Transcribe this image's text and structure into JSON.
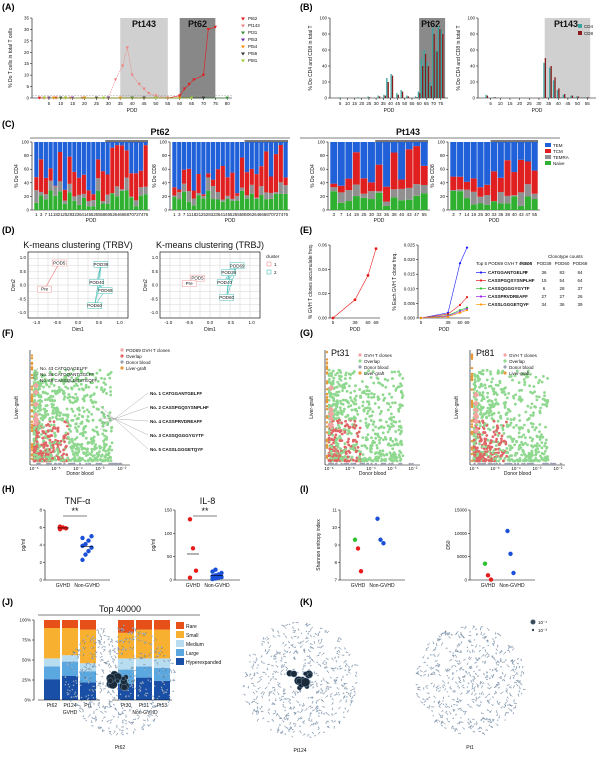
{
  "panels": {
    "A": {
      "label": "(A)"
    },
    "B": {
      "label": "(B)"
    },
    "C": {
      "label": "(C)"
    },
    "D": {
      "label": "(D)"
    },
    "E": {
      "label": "(E)"
    },
    "F": {
      "label": "(F)"
    },
    "G": {
      "label": "(G)"
    },
    "H": {
      "label": "(H)"
    },
    "I": {
      "label": "(I)"
    },
    "J": {
      "label": "(J)"
    },
    "K": {
      "label": "(K)"
    }
  },
  "chart_data": [
    {
      "id": "A",
      "type": "line",
      "xlabel": "POD",
      "ylabel": "% Do T cells in total T cells",
      "xticks": [
        "5",
        "10",
        "15",
        "20",
        "25",
        "30",
        "35",
        "40",
        "45",
        "50",
        "55",
        "60",
        "65",
        "70",
        "75",
        "80"
      ],
      "yticks": [
        "0",
        "5",
        "10",
        "15",
        "20",
        "25",
        "30",
        "35"
      ],
      "ylim": [
        0,
        35
      ],
      "shaded": [
        {
          "label": "Pt143",
          "range": [
            35,
            55
          ]
        },
        {
          "label": "Pt62",
          "range": [
            60,
            75
          ]
        }
      ],
      "legend": [
        "Pt62",
        "Pt143",
        "Pt31",
        "Pt53",
        "Pt54",
        "Pt56",
        "Pt81"
      ],
      "colors": {
        "Pt62": "#e8191a",
        "Pt143": "#f08080",
        "Pt31": "#2e8b2e",
        "Pt53": "#6a2aa8",
        "Pt54": "#ff8c00",
        "Pt56": "#333333",
        "Pt81": "#9acd32"
      },
      "series": [
        {
          "name": "Pt62",
          "x": [
            1,
            3,
            5,
            8,
            12,
            20,
            30,
            40,
            45,
            50,
            55,
            60,
            62,
            64,
            66,
            70,
            72,
            75
          ],
          "y": [
            0,
            0,
            0,
            0,
            0,
            0,
            0,
            0,
            0,
            0,
            0,
            1,
            4,
            6,
            8,
            10,
            30,
            31
          ]
        },
        {
          "name": "Pt143",
          "x": [
            3,
            7,
            14,
            19,
            25,
            30,
            33,
            36,
            38,
            40,
            43,
            45,
            47,
            50,
            55
          ],
          "y": [
            0,
            0,
            0,
            0,
            0,
            0,
            8,
            14,
            22,
            10,
            6,
            4,
            2,
            1,
            0
          ]
        },
        {
          "name": "Pt31",
          "x": [
            5,
            10,
            20,
            30,
            40,
            60,
            80
          ],
          "y": [
            0,
            0,
            0,
            0,
            0,
            0,
            0
          ]
        },
        {
          "name": "Pt53",
          "x": [
            5,
            15,
            30,
            50
          ],
          "y": [
            0,
            0,
            0,
            0
          ]
        },
        {
          "name": "Pt54",
          "x": [
            7,
            20,
            35,
            60
          ],
          "y": [
            0,
            0,
            0,
            0
          ]
        },
        {
          "name": "Pt56",
          "x": [
            10,
            25,
            45,
            70
          ],
          "y": [
            0,
            0,
            0,
            0
          ]
        },
        {
          "name": "Pt81",
          "x": [
            3,
            12,
            28,
            50,
            65
          ],
          "y": [
            0,
            0,
            0,
            0,
            0
          ]
        }
      ]
    },
    {
      "id": "B1",
      "type": "bar",
      "title": "Pt62",
      "ylabel": "% Do CD4 and CD8 in total T",
      "xlabel": "POD",
      "yticks": [
        "0",
        "20",
        "40",
        "60",
        "80",
        "100"
      ],
      "ylim": [
        0,
        100
      ],
      "xticks": [
        "5",
        "10",
        "15",
        "20",
        "25",
        "30",
        "35",
        "40",
        "45",
        "50",
        "55",
        "60",
        "65",
        "70",
        "75"
      ],
      "shaded": [
        60,
        76
      ],
      "x": [
        1,
        3,
        5,
        7,
        11,
        14,
        18,
        21,
        25,
        28,
        32,
        36,
        38,
        41,
        45,
        48,
        52,
        55,
        58,
        60,
        62,
        64,
        66,
        68,
        70,
        72,
        74,
        76
      ],
      "series": [
        {
          "name": "CD4",
          "values": [
            0,
            0,
            1,
            0,
            0,
            0,
            1,
            0,
            2,
            0,
            3,
            4,
            25,
            30,
            6,
            10,
            3,
            0,
            2,
            8,
            50,
            60,
            45,
            20,
            88,
            60,
            90,
            85
          ]
        },
        {
          "name": "CD8",
          "values": [
            0,
            0,
            0,
            0,
            0,
            0,
            0,
            0,
            1,
            0,
            2,
            3,
            20,
            28,
            4,
            8,
            2,
            0,
            1,
            6,
            40,
            55,
            40,
            15,
            80,
            58,
            86,
            80
          ]
        }
      ]
    },
    {
      "id": "B2",
      "type": "bar",
      "title": "Pt143",
      "ylabel": "% Do CD4 and CD8 in total T",
      "xlabel": "POD",
      "yticks": [
        "0",
        "20",
        "40",
        "60",
        "80",
        "100"
      ],
      "ylim": [
        0,
        100
      ],
      "xticks": [
        "5",
        "10",
        "15",
        "20",
        "25",
        "30",
        "35",
        "40",
        "45",
        "50",
        "55"
      ],
      "shaded": [
        33,
        55
      ],
      "legend": [
        "CD4",
        "CD8"
      ],
      "x": [
        3,
        7,
        14,
        19,
        25,
        30,
        33,
        36,
        38,
        40,
        43,
        47,
        50,
        55
      ],
      "series": [
        {
          "name": "CD4",
          "values": [
            4,
            1,
            0,
            0,
            0,
            0,
            44,
            38,
            22,
            10,
            4,
            3,
            2,
            1
          ]
        },
        {
          "name": "CD8",
          "values": [
            3,
            1,
            0,
            0,
            0,
            0,
            50,
            40,
            26,
            12,
            5,
            3,
            2,
            1
          ]
        }
      ]
    },
    {
      "id": "C",
      "type": "stacked-bar",
      "titles": [
        "Pt62",
        "Pt143"
      ],
      "ylabels": [
        "% Do CD4",
        "% Do CD8",
        "% Do CD4",
        "% Do CD8"
      ],
      "yticks": [
        "0",
        "20",
        "40",
        "60",
        "80",
        "100"
      ],
      "legend": [
        "TEM",
        "TCM",
        "TEMRA",
        "Naive"
      ],
      "colors": {
        "TEM": "#2060d8",
        "TCM": "#e02020",
        "TEMRA": "#909090",
        "Naive": "#30b030"
      },
      "xticks_pt62": [
        "1",
        "3",
        "7",
        "11",
        "18",
        "21",
        "25",
        "28",
        "32",
        "36",
        "41",
        "45",
        "52",
        "55",
        "58",
        "60",
        "62",
        "64",
        "66",
        "68",
        "70",
        "72",
        "74",
        "76"
      ],
      "xticks_pt143": [
        "3",
        "7",
        "14",
        "19",
        "25",
        "30",
        "33",
        "36",
        "38",
        "40",
        "43",
        "47",
        "55"
      ]
    },
    {
      "id": "D",
      "type": "scatter",
      "titles": [
        "K-means clustering (TRBV)",
        "K-means clustering (TRBJ)"
      ],
      "xlabel": "Dim1",
      "ylabel": "Dim2",
      "legend_title": "cluster",
      "legend": [
        "1",
        "2"
      ],
      "xticks": [
        "-1.0",
        "-0.5",
        "0.0",
        "0.5",
        "1.0"
      ],
      "yticks": [
        "-1.0",
        "-0.5",
        "0.0",
        "0.5",
        "1.0"
      ],
      "points_trbv": [
        {
          "label": "POD5",
          "x": -0.45,
          "y": 0.8,
          "cluster": 1
        },
        {
          "label": "Pre",
          "x": -0.8,
          "y": -0.15,
          "cluster": 1
        },
        {
          "label": "POD39",
          "x": 0.55,
          "y": 0.75,
          "cluster": 2
        },
        {
          "label": "POD40",
          "x": 0.45,
          "y": 0.1,
          "cluster": 2
        },
        {
          "label": "POD69",
          "x": 0.65,
          "y": -0.2,
          "cluster": 2
        },
        {
          "label": "POD60",
          "x": 0.4,
          "y": -0.75,
          "cluster": 2
        }
      ],
      "points_trbj": [
        {
          "label": "POD5",
          "x": -0.3,
          "y": 0.25,
          "cluster": 1
        },
        {
          "label": "Pre",
          "x": -0.5,
          "y": 0.05,
          "cluster": 1
        },
        {
          "label": "POD39",
          "x": 0.45,
          "y": 0.45,
          "cluster": 2
        },
        {
          "label": "POD40",
          "x": 0.35,
          "y": 0.1,
          "cluster": 2
        },
        {
          "label": "POD69",
          "x": 0.65,
          "y": 0.7,
          "cluster": 2
        },
        {
          "label": "POD60",
          "x": 0.4,
          "y": -0.45,
          "cluster": 2
        }
      ]
    },
    {
      "id": "E1",
      "type": "line",
      "xlabel": "POD",
      "ylabel": "% GVH T clones accumulate freq.",
      "x": [
        "5",
        "39",
        "60",
        "69"
      ],
      "y": [
        0,
        0.015,
        0.035,
        0.057
      ],
      "yticks": [
        "0.00",
        "0.02",
        "0.04",
        "0.06"
      ],
      "ylim": [
        0,
        0.06
      ]
    },
    {
      "id": "E2",
      "type": "line",
      "xlabel": "POD",
      "ylabel": "% Each GVH T clone freq.",
      "yticks": [
        "0.000",
        "0.005",
        "0.010",
        "0.015",
        "0.020",
        "0.025"
      ],
      "ylim": [
        0,
        0.028
      ],
      "x": [
        "5",
        "39",
        "60",
        "69"
      ],
      "legend_title": "Top 5 POD69 GVH T clones",
      "counts_title": "Clonotype counts",
      "counts_header": [
        "POD5",
        "POD39",
        "POD60",
        "POD69"
      ],
      "series": [
        {
          "name": "CATGGANTGELFF",
          "color": "#1a1aff",
          "values": [
            0,
            0.002,
            0.021,
            0.027
          ],
          "counts": [
            "9",
            "36",
            "83",
            "84"
          ]
        },
        {
          "name": "CASSPGQSYSNPLHF",
          "color": "#e81a1a",
          "values": [
            0,
            0.0015,
            0.005,
            0.008
          ],
          "counts": [
            "-",
            "15",
            "54",
            "64"
          ]
        },
        {
          "name": "CASSQGGGYGYTF",
          "color": "#2ec02e",
          "values": [
            0,
            0.001,
            0.003,
            0.004
          ],
          "counts": [
            "-",
            "6",
            "28",
            "37"
          ]
        },
        {
          "name": "CASSPRVDREAFF",
          "color": "#a020f0",
          "values": [
            0,
            0.0008,
            0.0025,
            0.0035
          ],
          "counts": [
            "-",
            "27",
            "27",
            "26"
          ]
        },
        {
          "name": "CASSLGGGETQYF",
          "color": "#ff9900",
          "values": [
            0,
            0.0005,
            0.002,
            0.003
          ],
          "counts": [
            "-",
            "34",
            "36",
            "39"
          ]
        }
      ]
    },
    {
      "id": "F",
      "type": "scatter",
      "xlabel": "Donor blood",
      "ylabel": "Liver-graft",
      "legend": [
        "POD69 GVH T clones",
        "Overlap",
        "Donor blood",
        "Liver-graft"
      ],
      "annotations": [
        "No. 43 CATGQAGELFF",
        "No. 38 CATGQANTGGLFF",
        "No. 46 CASSQLDGVTEQFF"
      ],
      "labels": [
        {
          "text": "No. 1 CATGGANTGELFF",
          "color": "#1a1aff"
        },
        {
          "text": "No. 2 CASSPGQSYSNPLHF",
          "color": "#e81a1a"
        },
        {
          "text": "No. 4 CASSPRVDREAFF",
          "color": "#a020f0"
        },
        {
          "text": "No. 3 CASSQGGGYGYTF",
          "color": "#2ec02e"
        },
        {
          "text": "No. 5 CASSLGGGETQYF",
          "color": "#ff9900"
        }
      ]
    },
    {
      "id": "G",
      "type": "scatter",
      "titles": [
        "Pt31",
        "Pt81"
      ],
      "xlabel": "Donor blood",
      "ylabel": "Liver-graft",
      "legend": [
        "GVH T clones",
        "Overlap",
        "Donor blood",
        "Liver-graft"
      ]
    },
    {
      "id": "H1",
      "type": "scatter",
      "title": "TNF-α",
      "ylabel": "pg/ml",
      "categories": [
        "GVHD",
        "Non-GVHD"
      ],
      "sig": "**",
      "yticks": [
        "0",
        "2",
        "4",
        "6",
        "8"
      ],
      "ylim": [
        0,
        8
      ],
      "gvhd": [
        5.8,
        6.0,
        5.9,
        6.1
      ],
      "non_gvhd": [
        2.3,
        2.9,
        3.3,
        3.7,
        3.9,
        4.1,
        4.5,
        5.0,
        4.8
      ]
    },
    {
      "id": "H2",
      "type": "scatter",
      "title": "IL-8",
      "ylabel": "pg/ml",
      "categories": [
        "GVHD",
        "Non-GVHD"
      ],
      "sig": "**",
      "yticks": [
        "0",
        "50",
        "100",
        "150"
      ],
      "ylim": [
        0,
        150
      ],
      "gvhd": [
        130,
        68,
        20,
        5
      ],
      "non_gvhd": [
        2,
        3,
        5,
        6,
        8,
        10,
        12,
        15,
        18,
        22
      ]
    },
    {
      "id": "I1",
      "type": "scatter",
      "ylabel": "Shannon entropy index",
      "categories": [
        "GVHD",
        "Non-GVHD"
      ],
      "yticks": [
        "7",
        "8",
        "9",
        "10",
        "11"
      ],
      "ylim": [
        7,
        11
      ],
      "gvhd": [
        {
          "v": 9.3,
          "c": "#2ec02e"
        },
        {
          "v": 8.8,
          "c": "#e81a1a"
        },
        {
          "v": 7.5,
          "c": "#e81a1a"
        }
      ],
      "non_gvhd": [
        {
          "v": 10.5,
          "c": "#1a4fd8"
        },
        {
          "v": 9.3,
          "c": "#1a4fd8"
        },
        {
          "v": 9.1,
          "c": "#1a4fd8"
        }
      ]
    },
    {
      "id": "I2",
      "type": "scatter",
      "ylabel": "D50",
      "categories": [
        "GVHD",
        "Non-GVHD"
      ],
      "yticks": [
        "0",
        "5000",
        "10000",
        "15000"
      ],
      "ylim": [
        0,
        15000
      ],
      "gvhd": [
        {
          "v": 3500,
          "c": "#2ec02e"
        },
        {
          "v": 1000,
          "c": "#e81a1a"
        },
        {
          "v": 100,
          "c": "#e81a1a"
        }
      ],
      "non_gvhd": [
        {
          "v": 10500,
          "c": "#1a4fd8"
        },
        {
          "v": 5600,
          "c": "#1a4fd8"
        },
        {
          "v": 1500,
          "c": "#1a4fd8"
        }
      ]
    },
    {
      "id": "J",
      "type": "stacked-bar",
      "title": "Top 40000",
      "yticks": [
        "0%",
        "25%",
        "50%",
        "75%",
        "100%"
      ],
      "categories": [
        "Pt62",
        "Pt124",
        "Pt1",
        "Pt30",
        "Pt31",
        "Pt53"
      ],
      "groups": [
        "GVHD",
        "Non-GVHD"
      ],
      "legend": [
        "Rare",
        "Small",
        "Medium",
        "Large",
        "Hyperexpanded"
      ],
      "colors": {
        "Rare": "#e8501a",
        "Small": "#f8b030",
        "Medium": "#b8ddf0",
        "Large": "#5ba8e0",
        "Hyperexpanded": "#1a4fa8"
      },
      "series": [
        {
          "name": "Hyperexpanded",
          "values": [
            26,
            30,
            22,
            20,
            28,
            24
          ]
        },
        {
          "name": "Large",
          "values": [
            16,
            18,
            14,
            18,
            14,
            16
          ]
        },
        {
          "name": "Medium",
          "values": [
            10,
            8,
            10,
            14,
            10,
            12
          ]
        },
        {
          "name": "Small",
          "values": [
            38,
            34,
            42,
            32,
            36,
            36
          ]
        },
        {
          "name": "Rare",
          "values": [
            10,
            10,
            12,
            16,
            12,
            12
          ]
        }
      ]
    },
    {
      "id": "K",
      "type": "network",
      "labels": [
        "Pt62",
        "Pt124",
        "Pt1"
      ],
      "legend": [
        "10⁻¹",
        "10⁻³"
      ]
    }
  ]
}
